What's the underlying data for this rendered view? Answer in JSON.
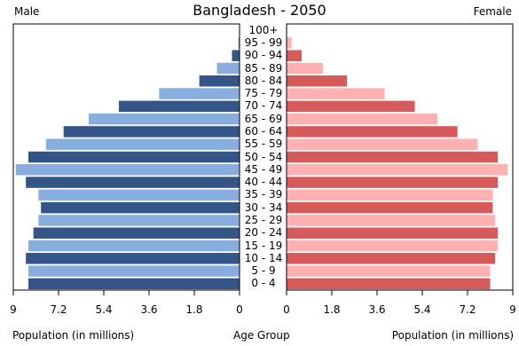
{
  "chart_data": {
    "type": "bar",
    "title": "Bangladesh - 2050",
    "left_label": "Male",
    "right_label": "Female",
    "xlabel_left": "Population (in millions)",
    "xlabel_center": "Age Group",
    "xlabel_right": "Population (in millions)",
    "xlim": [
      0,
      9
    ],
    "xticks_left": [
      "9",
      "7.2",
      "5.4",
      "3.6",
      "1.8",
      "0"
    ],
    "xticks_right": [
      "0",
      "1.8",
      "3.6",
      "5.4",
      "7.2",
      "9"
    ],
    "categories": [
      "0 - 4",
      "5 - 9",
      "10 - 14",
      "15 - 19",
      "20 - 24",
      "25 - 29",
      "30 - 34",
      "35 - 39",
      "40 - 44",
      "45 - 49",
      "50 - 54",
      "55 - 59",
      "60 - 64",
      "65 - 69",
      "70 - 74",
      "75 - 79",
      "80 - 84",
      "85 - 89",
      "90 - 94",
      "95 - 99",
      "100+"
    ],
    "series": [
      {
        "name": "Male",
        "values": [
          8.4,
          8.4,
          8.5,
          8.4,
          8.2,
          8.0,
          7.9,
          8.0,
          8.5,
          8.9,
          8.4,
          7.7,
          7.0,
          6.0,
          4.8,
          3.2,
          1.6,
          0.9,
          0.3,
          0.05,
          0.01
        ]
      },
      {
        "name": "Female",
        "values": [
          8.1,
          8.1,
          8.3,
          8.4,
          8.4,
          8.3,
          8.2,
          8.2,
          8.4,
          8.8,
          8.4,
          7.6,
          6.8,
          6.0,
          5.1,
          3.9,
          2.4,
          1.45,
          0.6,
          0.2,
          0.02
        ]
      }
    ],
    "colors": {
      "male_dark": "#335587",
      "male_light": "#88aee0",
      "female_dark": "#d65a5a",
      "female_light": "#ffb0b0",
      "frame": "#000000"
    }
  }
}
